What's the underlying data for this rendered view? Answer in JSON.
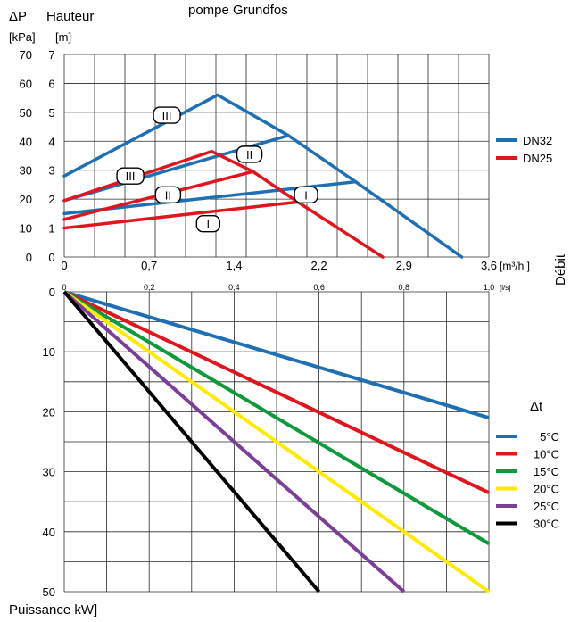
{
  "header": {
    "dp_label": "ΔP",
    "height_label": "Hauteur",
    "kpa_unit": "[kPa]",
    "m_unit": "[m]",
    "subtitle": "pompe Grundfos"
  },
  "flow_label": "Débit",
  "power_label": "Puissance kW]",
  "chart_data": [
    {
      "type": "line",
      "name": "pump-curves",
      "x_unit": "[m³/h ]",
      "x_unit_secondary": "[l/s]",
      "x_ticks": [
        "0",
        "0,7",
        "1,4",
        "2,2",
        "2,9",
        "3,6"
      ],
      "x_ticks_secondary": [
        "0",
        "0,2",
        "0,4",
        "0,6",
        "0,8",
        "1,0"
      ],
      "y_ticks_kpa": [
        "0",
        "10",
        "20",
        "30",
        "40",
        "50",
        "60",
        "70"
      ],
      "y_ticks_m": [
        "0",
        "1",
        "2",
        "3",
        "4",
        "5",
        "6",
        "7"
      ],
      "xlim": [
        0,
        3.6
      ],
      "ylim": [
        0,
        7
      ],
      "grid": true,
      "legend_position": "right",
      "series": [
        {
          "name": "DN32",
          "color": "#1f6fb5",
          "segments": [
            {
              "label": "I",
              "points": [
                [
                  0,
                  1.5
                ],
                [
                  2.47,
                  2.6
                ],
                [
                  3.37,
                  0
                ]
              ]
            },
            {
              "label": "II",
              "points": [
                [
                  0,
                  1.95
                ],
                [
                  1.9,
                  4.2
                ],
                [
                  2.47,
                  2.6
                ]
              ]
            },
            {
              "label": "III",
              "points": [
                [
                  0,
                  2.8
                ],
                [
                  1.3,
                  5.6
                ],
                [
                  1.9,
                  4.2
                ]
              ]
            }
          ]
        },
        {
          "name": "DN25",
          "color": "#e0161e",
          "segments": [
            {
              "label": "I",
              "points": [
                [
                  0,
                  1.0
                ],
                [
                  1.98,
                  1.9
                ],
                [
                  2.7,
                  0
                ]
              ]
            },
            {
              "label": "II",
              "points": [
                [
                  0,
                  1.3
                ],
                [
                  1.6,
                  2.95
                ],
                [
                  1.98,
                  1.9
                ]
              ]
            },
            {
              "label": "III",
              "points": [
                [
                  0,
                  1.95
                ],
                [
                  1.25,
                  3.65
                ],
                [
                  1.6,
                  2.95
                ]
              ]
            }
          ]
        }
      ],
      "tags": [
        {
          "text": "III",
          "x": 0.87,
          "y": 4.9
        },
        {
          "text": "II",
          "x": 1.57,
          "y": 3.55
        },
        {
          "text": "III",
          "x": 0.56,
          "y": 2.8
        },
        {
          "text": "II",
          "x": 0.88,
          "y": 2.15
        },
        {
          "text": "I",
          "x": 2.05,
          "y": 2.15
        },
        {
          "text": "I",
          "x": 1.22,
          "y": 1.15
        }
      ]
    },
    {
      "type": "line",
      "name": "power-curves",
      "y_ticks": [
        "0",
        "10",
        "20",
        "30",
        "40",
        "50"
      ],
      "ylim": [
        0,
        50
      ],
      "xlim": [
        0,
        1.0
      ],
      "grid": true,
      "legend_title": "Δt",
      "legend_position": "right",
      "series": [
        {
          "name": "5°C",
          "color": "#1f6fb5",
          "points": [
            [
              0,
              0
            ],
            [
              1.0,
              21
            ]
          ]
        },
        {
          "name": "10°C",
          "color": "#e0161e",
          "points": [
            [
              0,
              0
            ],
            [
              1.0,
              33.5
            ]
          ]
        },
        {
          "name": "15°C",
          "color": "#0d9a3b",
          "points": [
            [
              0,
              0
            ],
            [
              1.0,
              42
            ]
          ]
        },
        {
          "name": "20°C",
          "color": "#ffea00",
          "points": [
            [
              0,
              0
            ],
            [
              1.0,
              50
            ]
          ]
        },
        {
          "name": "25°C",
          "color": "#7b3f98",
          "points": [
            [
              0,
              0
            ],
            [
              0.8,
              50
            ]
          ]
        },
        {
          "name": "30°C",
          "color": "#000000",
          "points": [
            [
              0,
              0
            ],
            [
              0.6,
              50
            ]
          ]
        }
      ]
    }
  ]
}
